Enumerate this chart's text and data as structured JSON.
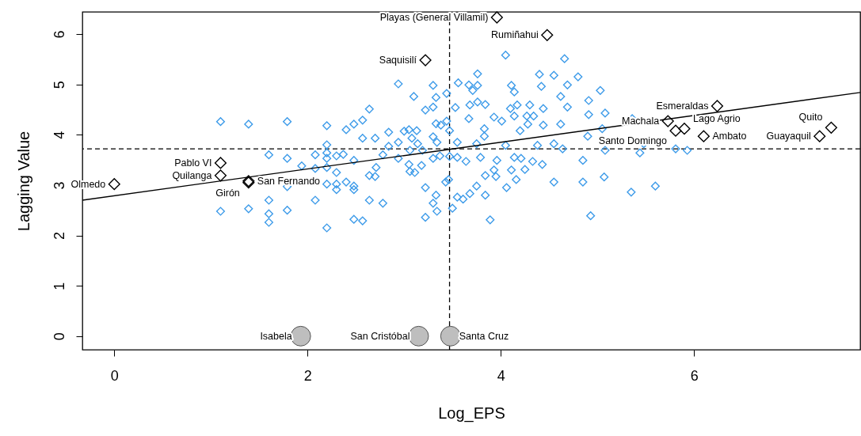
{
  "chart_data": {
    "type": "scatter",
    "xlabel": "Log_EPS",
    "ylabel": "Lagging Value",
    "xlim": [
      -0.33,
      7.72
    ],
    "ylim": [
      -0.27,
      6.44
    ],
    "xticks": [
      0,
      2,
      4,
      6
    ],
    "yticks": [
      0,
      1,
      2,
      3,
      4,
      5,
      6
    ],
    "grid": false,
    "series": [
      {
        "type": "scatter",
        "marker": "diamond",
        "color": "#3d9be9",
        "x": [
          1.1,
          1.39,
          1.79,
          2.2,
          2.2,
          2.2,
          2.2,
          2.2,
          2.2,
          2.2,
          1.6,
          1.79,
          1.94,
          2.08,
          2.08,
          2.08,
          1.6,
          1.6,
          1.6,
          1.79,
          1.39,
          1.1,
          1.79,
          2.3,
          2.3,
          2.3,
          2.3,
          4.05,
          4.66,
          4.4,
          4.55,
          4.8,
          3.76,
          2.94,
          3.3,
          3.56,
          3.67,
          3.76,
          3.71,
          4.11,
          4.14,
          4.42,
          4.69,
          3.1,
          3.33,
          3.44,
          4.62,
          4.91,
          2.64,
          3.22,
          3.3,
          3.53,
          3.68,
          3.76,
          3.84,
          4.17,
          4.1,
          4.3,
          4.44,
          4.69,
          4.91,
          2.57,
          2.48,
          2.4,
          3.33,
          3.38,
          3.44,
          3.67,
          3.93,
          4.01,
          4.14,
          4.27,
          4.34,
          4.28,
          4.2,
          4.44,
          4.62,
          2.84,
          3.0,
          3.05,
          3.13,
          3.47,
          3.83,
          3.83,
          2.57,
          2.7,
          2.94,
          3.08,
          3.14,
          3.3,
          3.34,
          3.55,
          2.84,
          3.75,
          4.05,
          4.38,
          4.55,
          4.9,
          4.64,
          2.37,
          2.48,
          2.78,
          2.94,
          3.06,
          3.19,
          3.3,
          3.37,
          3.47,
          3.55,
          3.64,
          3.79,
          3.96,
          4.14,
          4.21,
          4.33,
          4.43,
          4.85,
          2.71,
          3.05,
          3.18,
          3.06,
          3.11,
          2.64,
          2.7,
          2.4,
          2.48,
          2.48,
          3.43,
          3.46,
          3.84,
          3.93,
          3.95,
          4.11,
          4.25,
          4.16,
          4.06,
          3.75,
          3.68,
          3.84,
          4.55,
          4.85,
          3.22,
          3.33,
          3.55,
          3.61,
          2.64,
          2.78,
          3.3,
          3.34,
          3.5,
          2.48,
          2.57,
          3.22,
          3.89,
          4.93,
          5.03,
          5.08,
          5.36,
          5.05,
          5.08,
          5.48,
          5.44,
          5.81,
          5.93,
          5.07,
          5.35,
          5.6
        ],
        "values": [
          4.26,
          4.21,
          4.26,
          4.18,
          3.8,
          3.64,
          3.53,
          3.35,
          3.02,
          2.15,
          3.6,
          3.53,
          3.38,
          3.6,
          3.33,
          2.7,
          2.7,
          2.43,
          2.26,
          2.5,
          2.53,
          2.48,
          2.97,
          3.25,
          3.02,
          2.91,
          3.58,
          5.58,
          5.51,
          5.2,
          5.18,
          5.15,
          5.21,
          5.01,
          4.98,
          5.03,
          4.99,
          4.98,
          4.88,
          4.98,
          4.85,
          4.96,
          4.99,
          4.76,
          4.74,
          4.82,
          4.76,
          4.68,
          4.51,
          4.49,
          4.55,
          4.54,
          4.59,
          4.65,
          4.6,
          4.59,
          4.52,
          4.59,
          4.52,
          4.55,
          4.4,
          4.29,
          4.21,
          4.1,
          4.22,
          4.19,
          4.27,
          4.32,
          4.35,
          4.27,
          4.37,
          4.37,
          4.37,
          4.21,
          4.08,
          4.19,
          4.21,
          4.05,
          4.07,
          4.1,
          4.08,
          4.08,
          4.12,
          3.97,
          3.93,
          3.93,
          3.85,
          3.93,
          3.82,
          3.96,
          3.85,
          3.85,
          3.77,
          3.82,
          3.79,
          3.79,
          3.82,
          3.97,
          3.72,
          3.61,
          3.49,
          3.6,
          3.53,
          3.69,
          3.69,
          3.53,
          3.58,
          3.57,
          3.55,
          3.47,
          3.55,
          3.49,
          3.55,
          3.53,
          3.47,
          3.41,
          3.49,
          3.35,
          3.41,
          3.39,
          3.27,
          3.25,
          3.19,
          3.17,
          3.06,
          2.98,
          2.91,
          3.06,
          3.11,
          3.19,
          3.3,
          3.17,
          3.3,
          3.31,
          3.11,
          2.95,
          2.98,
          2.83,
          2.8,
          3.06,
          3.06,
          2.95,
          2.8,
          2.76,
          2.72,
          2.7,
          2.64,
          2.64,
          2.48,
          2.54,
          2.32,
          2.29,
          2.36,
          2.31,
          2.39,
          4.88,
          4.43,
          4.32,
          4.12,
          3.69,
          3.82,
          3.64,
          3.72,
          3.69,
          3.16,
          2.86,
          2.98
        ]
      },
      {
        "type": "scatter",
        "marker": "diamond",
        "color": "#000000",
        "x": [
          0,
          1.1,
          1.1,
          1.39,
          1.39,
          3.96,
          4.48,
          3.22,
          6.24,
          5.73,
          5.81,
          5.9,
          6.1,
          7.42,
          7.3
        ],
        "values": [
          3.02,
          3.44,
          3.19,
          3.08,
          3.05,
          6.33,
          5.98,
          5.48,
          4.57,
          4.27,
          4.08,
          4.12,
          3.97,
          4.14,
          3.97
        ]
      },
      {
        "type": "scatter",
        "marker": "circle",
        "color": "#bebebe",
        "x": [
          1.93,
          3.15,
          3.48
        ],
        "values": [
          0,
          0,
          0
        ]
      },
      {
        "type": "line",
        "line_style": "solid",
        "color": "#000000",
        "x": [
          -0.33,
          7.72
        ],
        "values": [
          2.7,
          4.84
        ]
      }
    ],
    "ref_lines": [
      {
        "axis": "x",
        "value": 3.47,
        "line_style": "dashed",
        "color": "#000000"
      },
      {
        "axis": "y",
        "value": 3.72,
        "line_style": "dashed",
        "color": "#000000"
      }
    ],
    "annotations": [
      {
        "text": "Olmedo",
        "x": 0,
        "y": 3.02
      },
      {
        "text": "Pablo VI",
        "x": 1.1,
        "y": 3.44
      },
      {
        "text": "Quilanga",
        "x": 1.1,
        "y": 3.19
      },
      {
        "text": "San Fernando",
        "x": 1.39,
        "y": 3.08
      },
      {
        "text": "Girón",
        "x": 1.39,
        "y": 3.05
      },
      {
        "text": "Playas (General Villamil)",
        "x": 3.96,
        "y": 6.33
      },
      {
        "text": "Rumiñahui",
        "x": 4.48,
        "y": 5.98
      },
      {
        "text": "Saquisilí",
        "x": 3.22,
        "y": 5.48
      },
      {
        "text": "Esmeraldas",
        "x": 6.24,
        "y": 4.57
      },
      {
        "text": "Machala",
        "x": 5.73,
        "y": 4.27
      },
      {
        "text": "Santo Domingo",
        "x": 5.81,
        "y": 4.08
      },
      {
        "text": "Lago Agrio",
        "x": 5.9,
        "y": 4.12
      },
      {
        "text": "Ambato",
        "x": 6.1,
        "y": 3.97
      },
      {
        "text": "Quito",
        "x": 7.42,
        "y": 4.14
      },
      {
        "text": "Guayaquil",
        "x": 7.3,
        "y": 3.97
      },
      {
        "text": "Isabela",
        "x": 1.93,
        "y": 0
      },
      {
        "text": "San Cristóbal",
        "x": 3.15,
        "y": 0
      },
      {
        "text": "Santa Cruz",
        "x": 3.48,
        "y": 0
      }
    ]
  }
}
